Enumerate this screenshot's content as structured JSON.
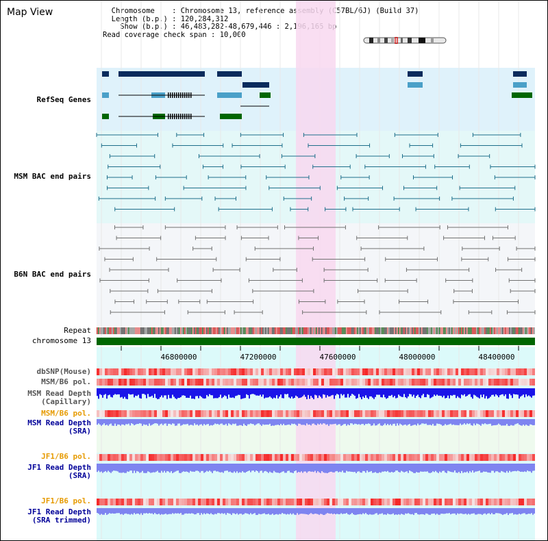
{
  "view": {
    "title": "Map View",
    "info_text": "  Chromosome    : Chromosome 13, reference assembly (C57BL/6J) (Build 37)\n  Length (b.p.) : 120,284,312\n    Show (b.p.) : 46,483,282-48,679,446 : 2,196,165 bp\nRead coverage check span : 10,000"
  },
  "colors": {
    "refseq_bg": "#dff2fb",
    "msm_bac_bg": "#e4f8f8",
    "b6n_bac_bg": "#f4f6f9",
    "lower_bg": "#dcfafa",
    "highlight": "#f8d8f0",
    "refseq_label": "#000080",
    "msm_label": "#1b6b80",
    "b6n_label": "#707070",
    "bac_msm": "#1d6e8a",
    "bac_b6n": "#707070",
    "chromosome": "#006600",
    "orange_label": "#e69a00",
    "blue_label": "#000099",
    "depth_dark": "#1a14e8",
    "depth_light": "#7e84f0"
  },
  "tracks": {
    "refseq": "RefSeq Genes",
    "msm_bac": "MSM BAC end pairs",
    "b6n_bac": "B6N BAC end pairs",
    "repeat": "Repeat",
    "chromosome": "chromosome 13",
    "dbsnp": "dbSNP(Mouse)",
    "msm_b6_pol_1": "MSM/B6 pol.",
    "msm_depth_cap": "MSM Read Depth\n(Capillary)",
    "msm_b6_pol_2": "MSM/B6 pol.",
    "msm_depth_sra": "MSM Read Depth\n(SRA)",
    "jf1_b6_pol_1": "JF1/B6 pol.",
    "jf1_depth_sra": "JF1 Read Depth\n(SRA)",
    "jf1_b6_pol_2": "JF1/B6 pol.",
    "jf1_depth_trim": "JF1 Read Depth\n(SRA trimmed)"
  },
  "axis": {
    "ticks": [
      "46800000",
      "47200000",
      "47600000",
      "48000000",
      "48400000"
    ]
  }
}
